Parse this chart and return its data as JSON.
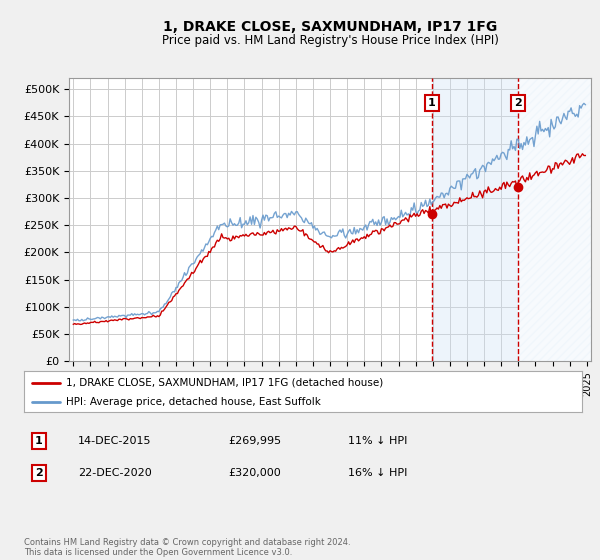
{
  "title": "1, DRAKE CLOSE, SAXMUNDHAM, IP17 1FG",
  "subtitle": "Price paid vs. HM Land Registry's House Price Index (HPI)",
  "yticks": [
    0,
    50000,
    100000,
    150000,
    200000,
    250000,
    300000,
    350000,
    400000,
    450000,
    500000
  ],
  "ytick_labels": [
    "£0",
    "£50K",
    "£100K",
    "£150K",
    "£200K",
    "£250K",
    "£300K",
    "£350K",
    "£400K",
    "£450K",
    "£500K"
  ],
  "ylim": [
    0,
    520000
  ],
  "sale1_year": 2015,
  "sale1_month": 12,
  "sale1_day": 14,
  "sale1_label": "14-DEC-2015",
  "sale1_price": 269995,
  "sale1_pct": "11% ↓ HPI",
  "sale2_year": 2020,
  "sale2_month": 12,
  "sale2_day": 22,
  "sale2_label": "22-DEC-2020",
  "sale2_price": 320000,
  "sale2_pct": "16% ↓ HPI",
  "line1_color": "#cc0000",
  "line2_color": "#6699cc",
  "marker_color": "#cc0000",
  "vline_color": "#cc0000",
  "shade_color": "#cce0f5",
  "hatch_color": "#e8e8e8",
  "legend1": "1, DRAKE CLOSE, SAXMUNDHAM, IP17 1FG (detached house)",
  "legend2": "HPI: Average price, detached house, East Suffolk",
  "footer": "Contains HM Land Registry data © Crown copyright and database right 2024.\nThis data is licensed under the Open Government Licence v3.0.",
  "bg_color": "#f0f0f0",
  "plot_bg": "#ffffff",
  "grid_color": "#cccccc",
  "start_year": 1995,
  "end_year": 2024,
  "x_years": [
    1995,
    1996,
    1997,
    1998,
    1999,
    2000,
    2001,
    2002,
    2003,
    2004,
    2005,
    2006,
    2007,
    2008,
    2009,
    2010,
    2011,
    2012,
    2013,
    2014,
    2015,
    2016,
    2017,
    2018,
    2019,
    2020,
    2021,
    2022,
    2023,
    2024,
    2025
  ]
}
